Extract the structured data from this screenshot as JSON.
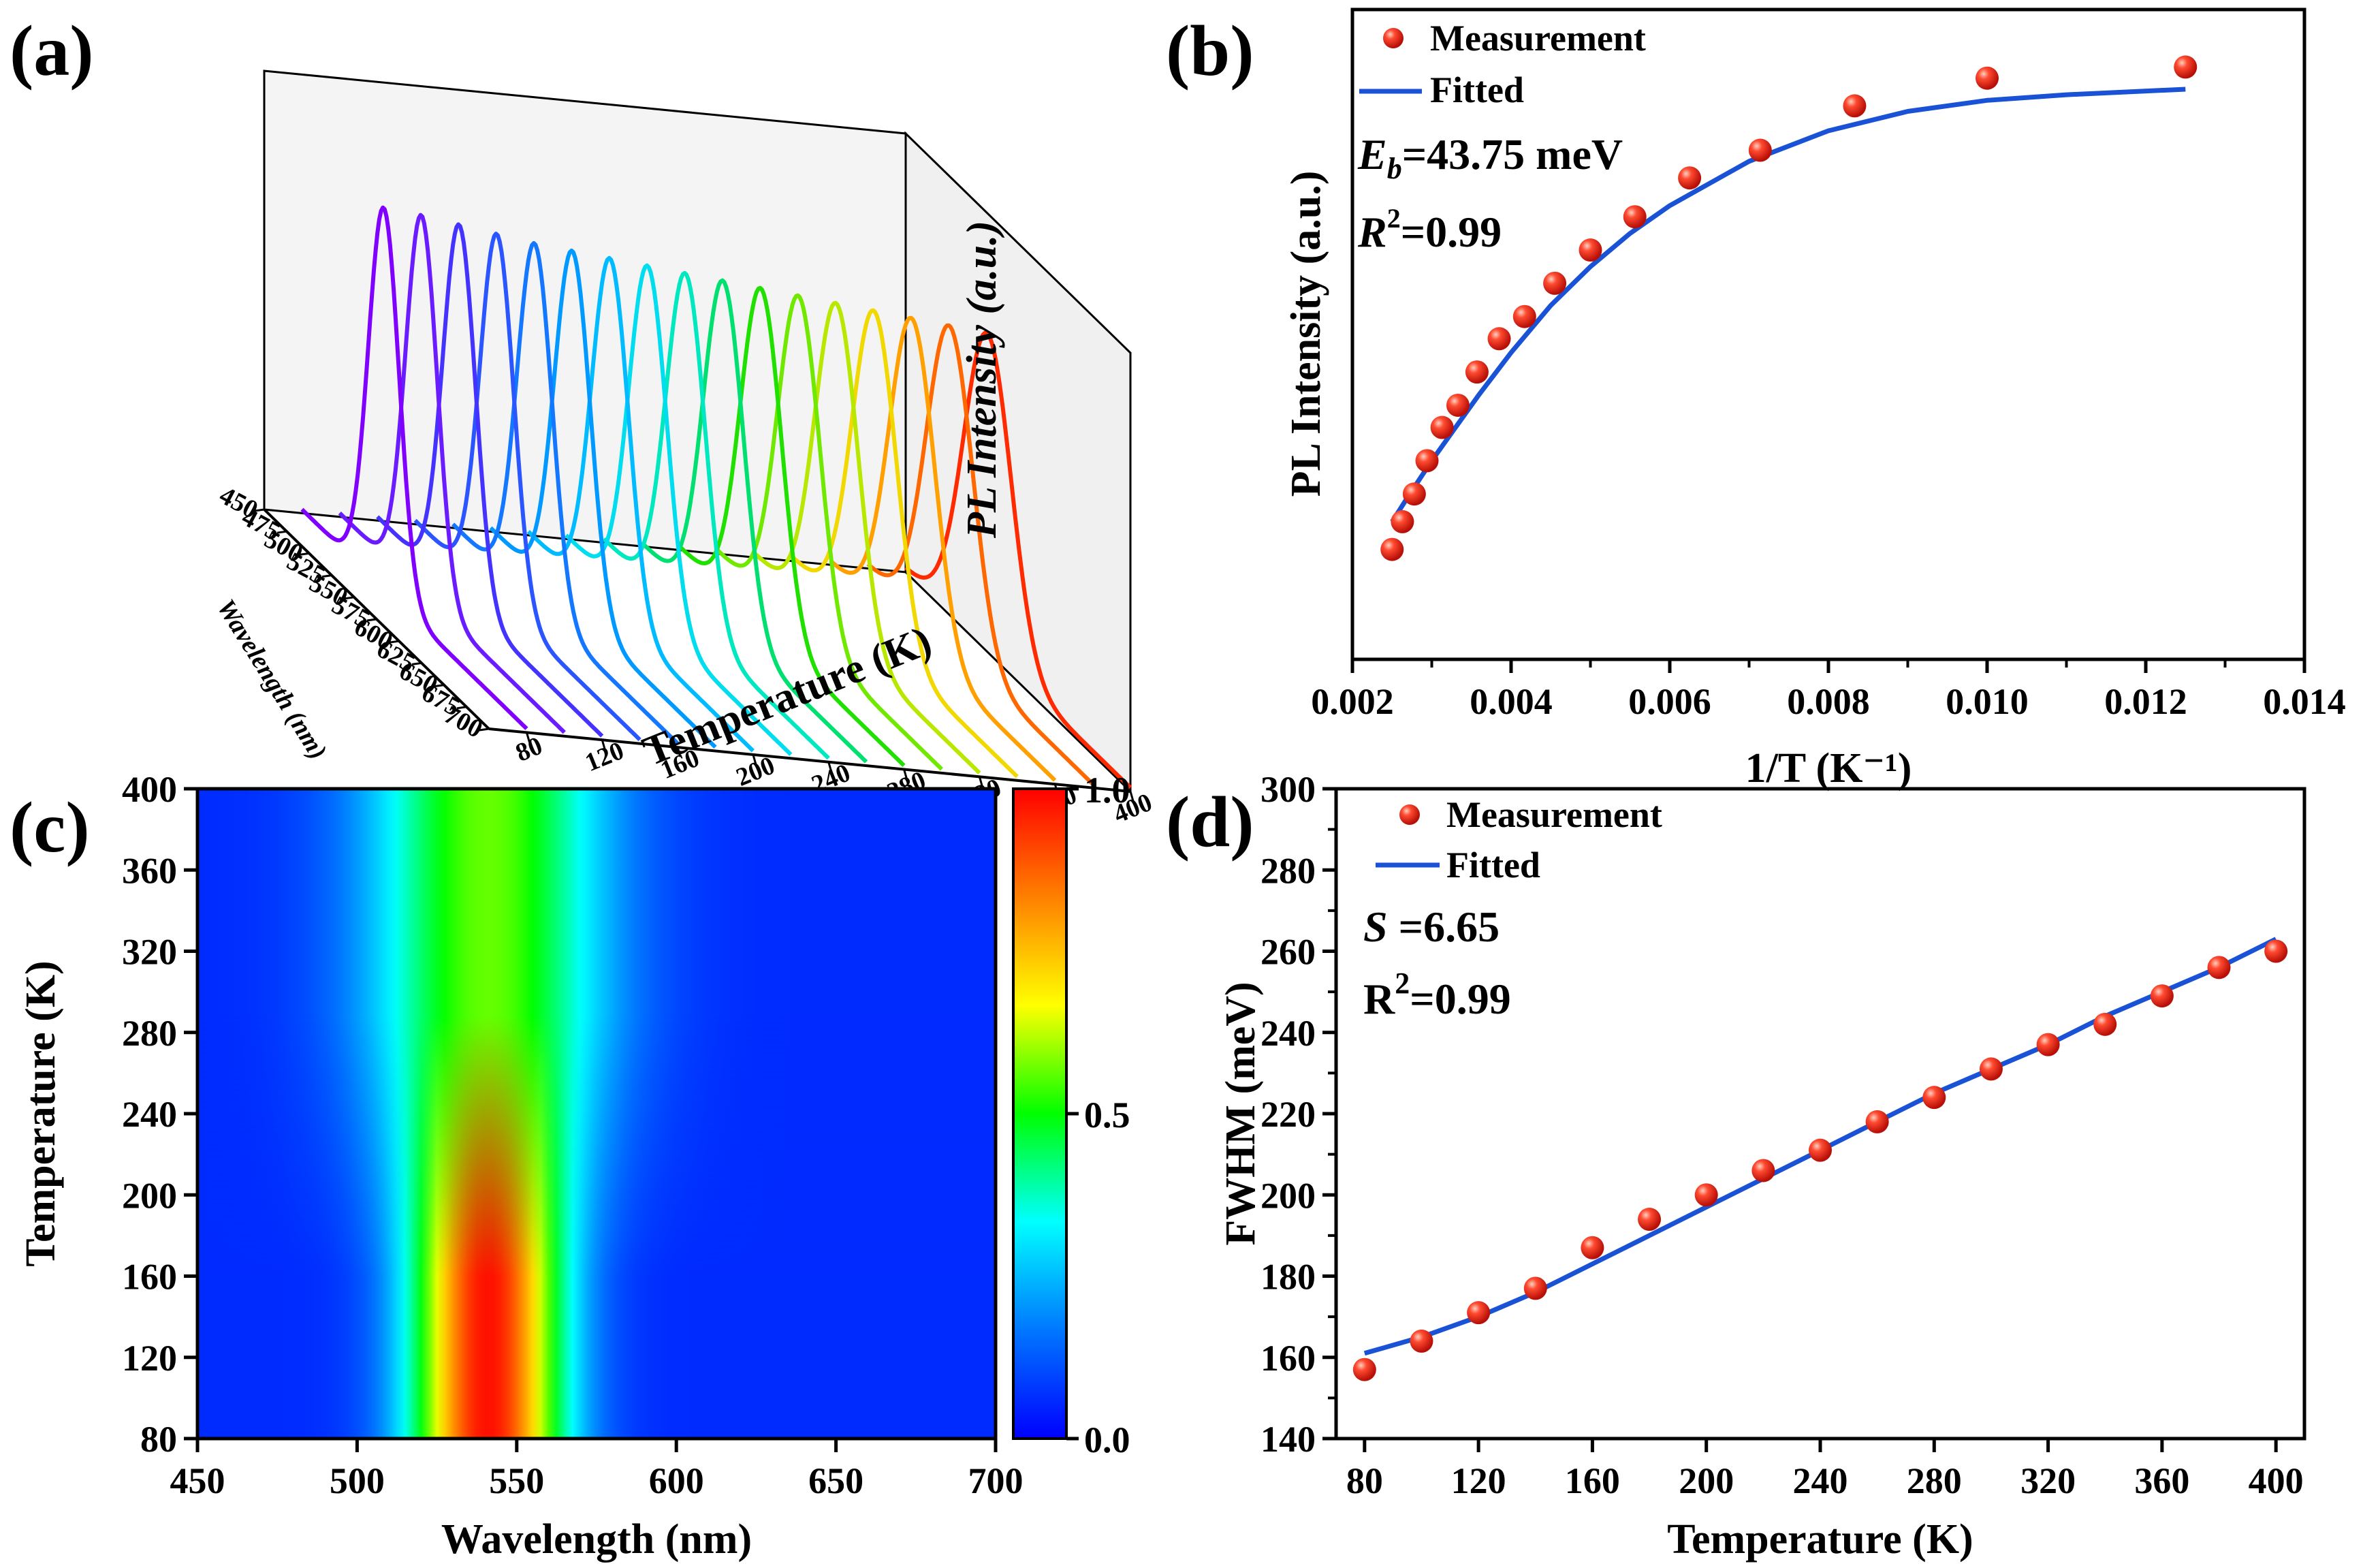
{
  "colors": {
    "marker": "#e8281d",
    "fit_line": "#1a52d6",
    "axis": "#000000",
    "colorbar": [
      "#0000ff",
      "#0077ff",
      "#00ffff",
      "#00ff00",
      "#ffff00",
      "#ff8000",
      "#ff0000"
    ]
  },
  "chart_data": [
    {
      "panel": "(a)",
      "type": "line",
      "view": "3d-waterfall",
      "xlabel": "Wavelength (nm)",
      "ylabel": "Temperature (K)",
      "zlabel": "PL Intensity (a.u.)",
      "wavelength_ticks": [
        450,
        475,
        500,
        525,
        550,
        575,
        600,
        625,
        650,
        675,
        700
      ],
      "temperature_ticks": [
        80,
        120,
        160,
        200,
        240,
        280,
        320,
        360,
        400
      ],
      "series_temperatures": [
        80,
        100,
        120,
        140,
        160,
        180,
        200,
        220,
        240,
        260,
        280,
        300,
        320,
        340,
        360,
        380,
        400
      ],
      "series_colors": [
        "#8000ff",
        "#6a1bff",
        "#4433ff",
        "#2a55ff",
        "#1377ff",
        "#0099ff",
        "#00bbff",
        "#00ddee",
        "#00e8c0",
        "#00e070",
        "#20e000",
        "#70e800",
        "#b8e800",
        "#f0d800",
        "#ffa000",
        "#ff6800",
        "#ff2a00"
      ],
      "peak_wavelength": 541,
      "relative_peak_heights": [
        1.0,
        0.99,
        0.975,
        0.96,
        0.945,
        0.935,
        0.925,
        0.915,
        0.905,
        0.895,
        0.885,
        0.875,
        0.865,
        0.855,
        0.845,
        0.835,
        0.825
      ]
    },
    {
      "panel": "(b)",
      "type": "scatter",
      "xlabel": "1/T (K⁻¹)",
      "ylabel": "PL Intensity (a.u.)",
      "xlim": [
        0.002,
        0.014
      ],
      "xticks": [
        "0.002",
        "0.004",
        "0.006",
        "0.008",
        "0.010",
        "0.012",
        "0.014"
      ],
      "ylim": [
        0,
        1
      ],
      "legend_position": "top-left",
      "series": [
        {
          "name": "Measurement",
          "kind": "scatter",
          "x": [
            0.0025,
            0.00263,
            0.00278,
            0.00294,
            0.00313,
            0.00333,
            0.00357,
            0.00385,
            0.00417,
            0.00455,
            0.005,
            0.00556,
            0.00625,
            0.00714,
            0.00833,
            0.01,
            0.0125
          ],
          "y": [
            0.1,
            0.15,
            0.2,
            0.26,
            0.32,
            0.36,
            0.42,
            0.48,
            0.52,
            0.58,
            0.64,
            0.7,
            0.77,
            0.82,
            0.9,
            0.95,
            0.97
          ]
        },
        {
          "name": "Fitted",
          "kind": "line",
          "x": [
            0.0025,
            0.0027,
            0.003,
            0.0033,
            0.0036,
            0.004,
            0.0045,
            0.005,
            0.0055,
            0.006,
            0.007,
            0.008,
            0.009,
            0.01,
            0.011,
            0.0125
          ],
          "y": [
            0.15,
            0.195,
            0.26,
            0.32,
            0.38,
            0.455,
            0.54,
            0.61,
            0.67,
            0.72,
            0.8,
            0.855,
            0.89,
            0.91,
            0.92,
            0.93
          ]
        }
      ],
      "annotations": {
        "eb_symbol": "E",
        "eb_sub": "b",
        "eb_value": "=43.75 meV",
        "r2_symbol": "R",
        "r2_sup": "2",
        "r2_value": "=0.99"
      }
    },
    {
      "panel": "(c)",
      "type": "heatmap",
      "xlabel": "Wavelength (nm)",
      "ylabel": "Temperature (K)",
      "xlim": [
        450,
        700
      ],
      "xticks": [
        450,
        500,
        550,
        600,
        650,
        700
      ],
      "ylim": [
        80,
        400
      ],
      "yticks": [
        80,
        120,
        160,
        200,
        240,
        280,
        320,
        360,
        400
      ],
      "colorbar_ticks": [
        "0.0",
        "0.5",
        "1.0"
      ],
      "colorbar_range": [
        0,
        1
      ],
      "peak_wavelength": 541,
      "peak_fwhm_nm_80K": 40,
      "peak_fwhm_nm_400K": 62,
      "normalized_peak_at_80K": 1.0,
      "normalized_peak_at_400K": 0.55
    },
    {
      "panel": "(d)",
      "type": "scatter",
      "xlabel": "Temperature (K)",
      "ylabel": "FWHM (meV)",
      "xlim": [
        70,
        410
      ],
      "xticks": [
        80,
        120,
        160,
        200,
        240,
        280,
        320,
        360,
        400
      ],
      "ylim": [
        140,
        300
      ],
      "yticks": [
        140,
        160,
        180,
        200,
        220,
        240,
        260,
        280,
        300
      ],
      "legend_position": "top-left",
      "series": [
        {
          "name": "Measurement",
          "kind": "scatter",
          "x": [
            80,
            100,
            120,
            140,
            160,
            180,
            200,
            220,
            240,
            260,
            280,
            300,
            320,
            340,
            360,
            380,
            400
          ],
          "y": [
            157,
            164,
            171,
            177,
            187,
            194,
            200,
            206,
            211,
            218,
            224,
            231,
            237,
            242,
            249,
            256,
            260
          ]
        },
        {
          "name": "Fitted",
          "kind": "line",
          "x": [
            80,
            100,
            120,
            140,
            160,
            180,
            200,
            220,
            240,
            260,
            280,
            300,
            320,
            340,
            360,
            380,
            400
          ],
          "y": [
            161,
            165,
            170,
            176,
            183,
            190,
            197,
            204,
            211,
            218,
            225,
            231,
            237,
            244,
            250,
            256,
            263
          ]
        }
      ],
      "annotations": {
        "s_symbol": "S",
        "s_value": " =6.65",
        "r2_text": "R",
        "r2_sup": "2",
        "r2_value": "=0.99"
      }
    }
  ]
}
